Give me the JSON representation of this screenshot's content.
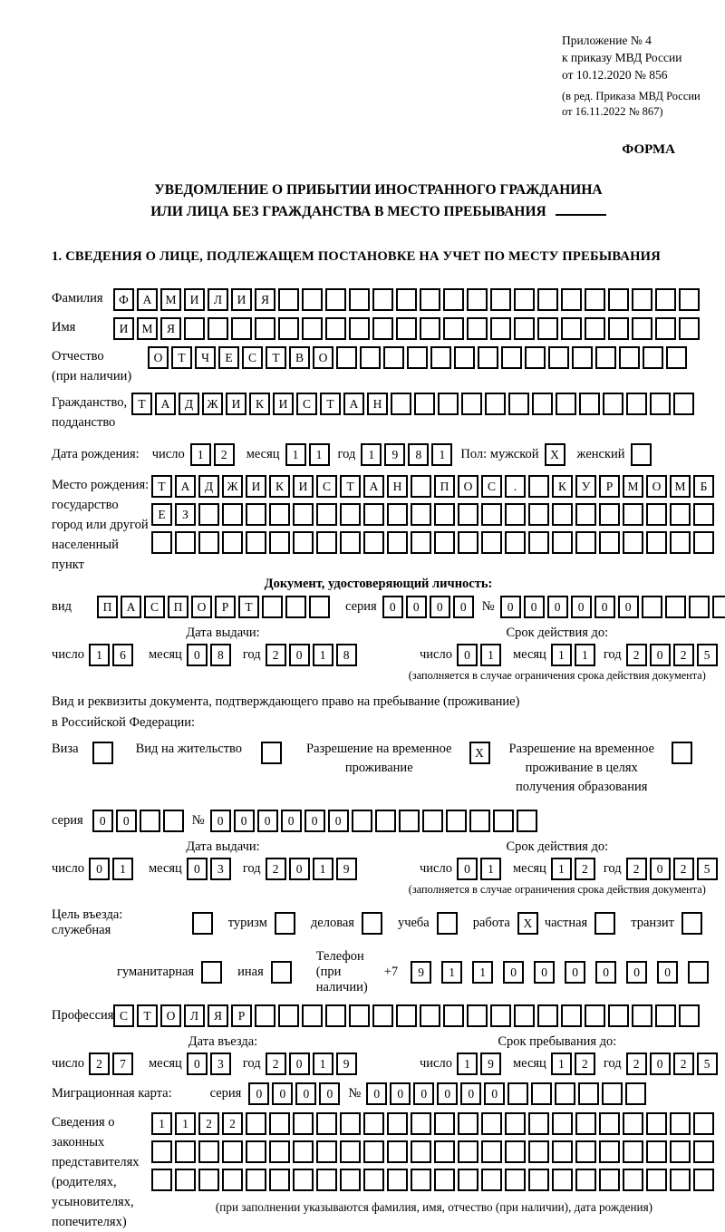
{
  "header": {
    "annex_line1": "Приложение № 4",
    "annex_line2": "к приказу МВД России",
    "annex_line3": "от 10.12.2020 № 856",
    "annex_note1": "(в ред. Приказа МВД России",
    "annex_note2": "от 16.11.2022 № 867)",
    "forma": "ФОРМА",
    "title1": "УВЕДОМЛЕНИЕ О ПРИБЫТИИ ИНОСТРАННОГО ГРАЖДАНИНА",
    "title2": "ИЛИ ЛИЦА БЕЗ ГРАЖДАНСТВА В МЕСТО ПРЕБЫВАНИЯ",
    "section1": "1. СВЕДЕНИЯ О ЛИЦЕ, ПОДЛЕЖАЩЕМ ПОСТАНОВКЕ НА УЧЕТ ПО МЕСТУ ПРЕБЫВАНИЯ"
  },
  "labels": {
    "surname": "Фамилия",
    "firstname": "Имя",
    "patronymic1": "Отчество",
    "patronymic2": "(при наличии)",
    "citizenship1": "Гражданство,",
    "citizenship2": "подданство",
    "birthdate": "Дата рождения:",
    "day": "число",
    "month": "месяц",
    "year": "год",
    "sex_male": "Пол: мужской",
    "sex_female": "женский",
    "birthplace1": "Место рождения:",
    "birthplace2": "государство",
    "birthplace3": "город или другой",
    "birthplace4": "населенный пункт",
    "identity_doc_heading": "Документ, удостоверяющий личность:",
    "doc_type": "вид",
    "series": "серия",
    "number": "№",
    "issue_date": "Дата выдачи:",
    "valid_until": "Срок действия до:",
    "valid_note": "(заполняется в случае ограничения срока действия документа)",
    "right_doc_line1": "Вид и реквизиты документа, подтверждающего право на пребывание (проживание)",
    "right_doc_line2": "в Российской Федерации:",
    "visa": "Виза",
    "residence_permit": "Вид на жительство",
    "temp_residence_l1": "Разрешение на временное",
    "temp_residence_l2": "проживание",
    "temp_edu_l1": "Разрешение на временное",
    "temp_edu_l2": "проживание в целях",
    "temp_edu_l3": "получения образования",
    "purpose": "Цель въезда: служебная",
    "tourism": "туризм",
    "business": "деловая",
    "study": "учеба",
    "work": "работа",
    "private": "частная",
    "transit": "транзит",
    "humanitarian": "гуманитарная",
    "other": "иная",
    "phone_label": "Телефон (при наличии)",
    "phone_prefix": "+7",
    "profession": "Профессия",
    "entry_date": "Дата въезда:",
    "stay_until": "Срок пребывания до:",
    "migration_card": "Миграционная карта:",
    "rep1": "Сведения о",
    "rep2": "законных",
    "rep3": "представителях",
    "rep4": "(родителях,",
    "rep5": "усыновителях,",
    "rep6": "попечителях)",
    "rep_note": "(при заполнении указываются фамилия, имя, отчество (при наличии), дата рождения)"
  },
  "cells": {
    "surname": {
      "count": 25,
      "value": "ФАМИЛИЯ"
    },
    "firstname": {
      "count": 25,
      "value": "ИМЯ"
    },
    "patronymic": {
      "count": 23,
      "value": "ОТЧЕСТВО"
    },
    "citizenship": {
      "count": 24,
      "value": "ТАДЖИКИСТАН"
    },
    "birth_day": {
      "count": 2,
      "value": "12"
    },
    "birth_month": {
      "count": 2,
      "value": "11"
    },
    "birth_year": {
      "count": 4,
      "value": "1981"
    },
    "sex_male": {
      "count": 1,
      "value": "X"
    },
    "sex_female": {
      "count": 1,
      "value": ""
    },
    "birthplace_row1": {
      "count": 24,
      "value": "ТАДЖИКИСТАН ПОС. КУРМОМБ"
    },
    "birthplace_row2": {
      "count": 24,
      "value": "ЕЗ"
    },
    "birthplace_row3": {
      "count": 24,
      "value": ""
    },
    "doc_type": {
      "count": 10,
      "value": "ПАСПОРТ"
    },
    "doc_series": {
      "count": 4,
      "value": "0000"
    },
    "doc_number": {
      "count": 10,
      "value": "000000"
    },
    "doc_issue_day": {
      "count": 2,
      "value": "16"
    },
    "doc_issue_month": {
      "count": 2,
      "value": "08"
    },
    "doc_issue_year": {
      "count": 4,
      "value": "2018"
    },
    "doc_valid_day": {
      "count": 2,
      "value": "01"
    },
    "doc_valid_month": {
      "count": 2,
      "value": "11"
    },
    "doc_valid_year": {
      "count": 4,
      "value": "2025"
    },
    "visa_box": {
      "count": 1,
      "value": ""
    },
    "residence_permit_box": {
      "count": 1,
      "value": ""
    },
    "temp_residence_box": {
      "count": 1,
      "value": "X"
    },
    "temp_residence_edu_box": {
      "count": 1,
      "value": ""
    },
    "permit_series": {
      "count": 4,
      "value": "00"
    },
    "permit_number": {
      "count": 14,
      "value": "000000"
    },
    "permit_issue_day": {
      "count": 2,
      "value": "01"
    },
    "permit_issue_month": {
      "count": 2,
      "value": "03"
    },
    "permit_issue_year": {
      "count": 4,
      "value": "2019"
    },
    "permit_valid_day": {
      "count": 2,
      "value": "01"
    },
    "permit_valid_month": {
      "count": 2,
      "value": "12"
    },
    "permit_valid_year": {
      "count": 4,
      "value": "2025"
    },
    "purpose_official": {
      "count": 1,
      "value": ""
    },
    "purpose_tourism": {
      "count": 1,
      "value": ""
    },
    "purpose_business": {
      "count": 1,
      "value": ""
    },
    "purpose_study": {
      "count": 1,
      "value": ""
    },
    "purpose_work": {
      "count": 1,
      "value": "X"
    },
    "purpose_private": {
      "count": 1,
      "value": ""
    },
    "purpose_transit": {
      "count": 1,
      "value": ""
    },
    "purpose_humanitarian": {
      "count": 1,
      "value": ""
    },
    "purpose_other": {
      "count": 1,
      "value": ""
    },
    "phone": {
      "count": 10,
      "value": "911000000"
    },
    "profession": {
      "count": 25,
      "value": "СТОЛЯР"
    },
    "entry_day": {
      "count": 2,
      "value": "27"
    },
    "entry_month": {
      "count": 2,
      "value": "03"
    },
    "entry_year": {
      "count": 4,
      "value": "2019"
    },
    "stay_day": {
      "count": 2,
      "value": "19"
    },
    "stay_month": {
      "count": 2,
      "value": "12"
    },
    "stay_year": {
      "count": 4,
      "value": "2025"
    },
    "migration_series": {
      "count": 4,
      "value": "0000"
    },
    "migration_number": {
      "count": 12,
      "value": "000000"
    },
    "representatives_row1": {
      "count": 24,
      "value": "1122"
    },
    "representatives_row2": {
      "count": 24,
      "value": ""
    },
    "representatives_row3": {
      "count": 24,
      "value": ""
    }
  }
}
